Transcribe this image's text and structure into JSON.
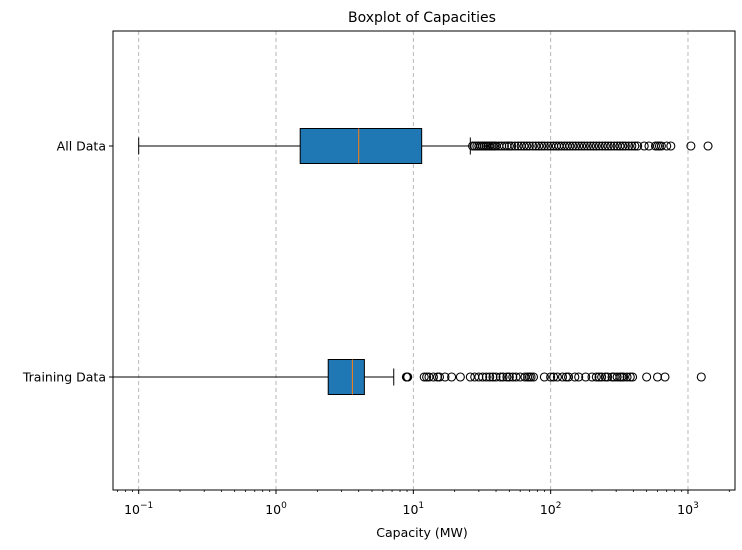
{
  "chart_data": {
    "type": "boxplot",
    "title": "Boxplot of Capacities",
    "xlabel": "Capacity (MW)",
    "ylabel": "",
    "xscale": "log",
    "xlim": [
      0.065,
      2200
    ],
    "xticks": [
      {
        "value": 0.1,
        "base": "10",
        "exp": "−1"
      },
      {
        "value": 1,
        "base": "10",
        "exp": "0"
      },
      {
        "value": 10,
        "base": "10",
        "exp": "1"
      },
      {
        "value": 100,
        "base": "10",
        "exp": "2"
      },
      {
        "value": 1000,
        "base": "10",
        "exp": "3"
      }
    ],
    "grid": "x-major dashed",
    "colors": {
      "box": "#1f77b4",
      "median": "#ff7f0e",
      "grid": "#b0b0b0"
    },
    "categories": [
      "All Data",
      "Training Data"
    ],
    "boxes": [
      {
        "name": "All Data",
        "whislo": 0.1,
        "q1": 1.5,
        "median": 4.0,
        "q3": 11.5,
        "whishi": 26,
        "fliers": [
          27,
          28,
          29,
          30,
          31,
          32,
          33,
          34,
          35,
          36,
          37,
          38,
          39,
          40,
          42,
          44,
          46,
          48,
          50,
          52,
          55,
          58,
          61,
          64,
          67,
          70,
          74,
          78,
          82,
          86,
          90,
          95,
          100,
          105,
          110,
          115,
          120,
          126,
          132,
          138,
          145,
          152,
          160,
          168,
          176,
          185,
          195,
          205,
          215,
          226,
          238,
          250,
          262,
          275,
          290,
          305,
          320,
          335,
          350,
          370,
          390,
          410,
          430,
          480,
          520,
          580,
          600,
          620,
          640,
          700,
          750,
          1050,
          1400
        ]
      },
      {
        "name": "Training Data",
        "whislo": 0.065,
        "q1": 2.4,
        "median": 3.6,
        "q3": 4.4,
        "whishi": 7.2,
        "fliers": [
          8.9,
          9.0,
          9.1,
          12,
          12.5,
          13,
          14,
          15,
          15.5,
          17,
          19,
          22,
          26,
          28,
          30,
          32,
          34,
          36,
          38,
          40,
          43,
          45,
          48,
          50,
          53,
          56,
          60,
          65,
          68,
          70,
          72,
          75,
          90,
          100,
          105,
          112,
          122,
          130,
          135,
          150,
          160,
          180,
          200,
          215,
          225,
          235,
          250,
          260,
          280,
          290,
          305,
          320,
          330,
          340,
          360,
          380,
          395,
          500,
          600,
          680,
          1250
        ]
      }
    ]
  }
}
